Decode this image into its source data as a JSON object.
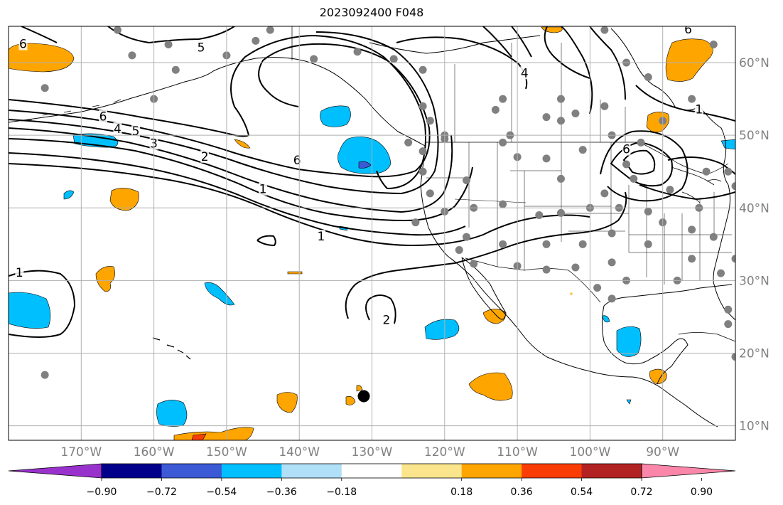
{
  "title": "2023092400 F048",
  "map": {
    "lon_range": [
      -180,
      -80
    ],
    "lat_range": [
      8,
      65
    ],
    "lon_ticks": [
      {
        "value": -170,
        "label": "170°W"
      },
      {
        "value": -160,
        "label": "160°W"
      },
      {
        "value": -150,
        "label": "150°W"
      },
      {
        "value": -140,
        "label": "140°W"
      },
      {
        "value": -130,
        "label": "130°W"
      },
      {
        "value": -120,
        "label": "120°W"
      },
      {
        "value": -110,
        "label": "110°W"
      },
      {
        "value": -100,
        "label": "100°W"
      },
      {
        "value": -90,
        "label": "90°W"
      }
    ],
    "lat_ticks": [
      {
        "value": 10,
        "label": "10°N"
      },
      {
        "value": 20,
        "label": "20°N"
      },
      {
        "value": 30,
        "label": "30°N"
      },
      {
        "value": 40,
        "label": "40°N"
      },
      {
        "value": 50,
        "label": "50°N"
      },
      {
        "value": 60,
        "label": "60°N"
      }
    ],
    "grid": true,
    "colors": {
      "land_line": "#000000",
      "contour": "#000000",
      "station": "#808080",
      "marker": "#000000"
    },
    "contour_labels": [
      {
        "text": "6",
        "lon": -178,
        "lat": 62.5
      },
      {
        "text": "5",
        "lon": -153.5,
        "lat": 62
      },
      {
        "text": "6",
        "lon": -167,
        "lat": 52.5
      },
      {
        "text": "5",
        "lon": -162.5,
        "lat": 50.5
      },
      {
        "text": "4",
        "lon": -165,
        "lat": 50.8
      },
      {
        "text": "3",
        "lon": -160,
        "lat": 48.8
      },
      {
        "text": "2",
        "lon": -153,
        "lat": 47
      },
      {
        "text": "1",
        "lon": -145,
        "lat": 42.5
      },
      {
        "text": "6",
        "lon": -140.3,
        "lat": 46.5
      },
      {
        "text": "1",
        "lon": -137,
        "lat": 36
      },
      {
        "text": "1",
        "lon": -178.5,
        "lat": 31
      },
      {
        "text": "2",
        "lon": -128,
        "lat": 24.5
      },
      {
        "text": "4",
        "lon": -109,
        "lat": 58.5
      },
      {
        "text": "6",
        "lon": -95,
        "lat": 48
      },
      {
        "text": "1",
        "lon": -85,
        "lat": 53.5
      },
      {
        "text": "6",
        "lon": -86.5,
        "lat": 64.5
      }
    ],
    "stations": [
      [
        -175,
        17
      ],
      [
        -165,
        64.5
      ],
      [
        -163,
        61
      ],
      [
        -158,
        62.5
      ],
      [
        -157,
        59
      ],
      [
        -160,
        55
      ],
      [
        -175,
        56.5
      ],
      [
        -146,
        63
      ],
      [
        -144,
        64.5
      ],
      [
        -150,
        61
      ],
      [
        -138,
        60.5
      ],
      [
        -132,
        61.5
      ],
      [
        -127,
        60.5
      ],
      [
        -123,
        59
      ],
      [
        -123,
        54
      ],
      [
        -122,
        52
      ],
      [
        -120,
        50
      ],
      [
        -120,
        49.5
      ],
      [
        -125,
        49
      ],
      [
        -123,
        47.8
      ],
      [
        -123,
        45
      ],
      [
        -122,
        42
      ],
      [
        -124,
        38
      ],
      [
        -120,
        39.5
      ],
      [
        -117,
        43.8
      ],
      [
        -116,
        40
      ],
      [
        -117,
        36
      ],
      [
        -118,
        34.2
      ],
      [
        -116,
        32.3
      ],
      [
        -112,
        55
      ],
      [
        -113,
        53.5
      ],
      [
        -111,
        50
      ],
      [
        -112,
        49
      ],
      [
        -106,
        52.5
      ],
      [
        -104,
        52
      ],
      [
        -102,
        53
      ],
      [
        -104,
        55
      ],
      [
        -98,
        54
      ],
      [
        -97,
        50
      ],
      [
        -101,
        48
      ],
      [
        -106,
        46.8
      ],
      [
        -110,
        47
      ],
      [
        -104,
        44
      ],
      [
        -107,
        39
      ],
      [
        -104,
        39.3
      ],
      [
        -112,
        40.5
      ],
      [
        -112,
        35
      ],
      [
        -110,
        32
      ],
      [
        -106,
        35
      ],
      [
        -106,
        31.5
      ],
      [
        -102,
        31.8
      ],
      [
        -101,
        35
      ],
      [
        -100,
        40
      ],
      [
        -98,
        42
      ],
      [
        -99,
        29
      ],
      [
        -97,
        32.5
      ],
      [
        -97,
        36.5
      ],
      [
        -97,
        27.5
      ],
      [
        -95,
        30
      ],
      [
        -96,
        40
      ],
      [
        -95,
        46
      ],
      [
        -94,
        44
      ],
      [
        -93,
        49
      ],
      [
        -92,
        39.5
      ],
      [
        -92,
        35
      ],
      [
        -90,
        38
      ],
      [
        -89,
        42.5
      ],
      [
        -88,
        30
      ],
      [
        -86,
        33
      ],
      [
        -86,
        37
      ],
      [
        -85,
        40
      ],
      [
        -84,
        45
      ],
      [
        -82,
        31
      ],
      [
        -83,
        36
      ],
      [
        -80,
        33
      ],
      [
        -81,
        24
      ],
      [
        -81,
        26
      ],
      [
        -80,
        19.5
      ],
      [
        -83,
        62.5
      ],
      [
        -92,
        58
      ],
      [
        -95,
        60
      ],
      [
        -98,
        64.5
      ],
      [
        -90,
        52
      ],
      [
        -86,
        55
      ],
      [
        -81,
        45
      ],
      [
        -80,
        43
      ]
    ]
  },
  "colorbar": {
    "ticks": [
      "−0.90",
      "−0.72",
      "−0.54",
      "−0.36",
      "−0.18",
      "0.18",
      "0.36",
      "0.54",
      "0.72",
      "0.90"
    ],
    "bin_colors": [
      "#9932cc",
      "#00008b",
      "#3c59d6",
      "#00bfff",
      "#b0e0f8",
      "#ffffff",
      "#fae58c",
      "#ffa500",
      "#fa3d05",
      "#b22222",
      "#fa87aa"
    ]
  }
}
